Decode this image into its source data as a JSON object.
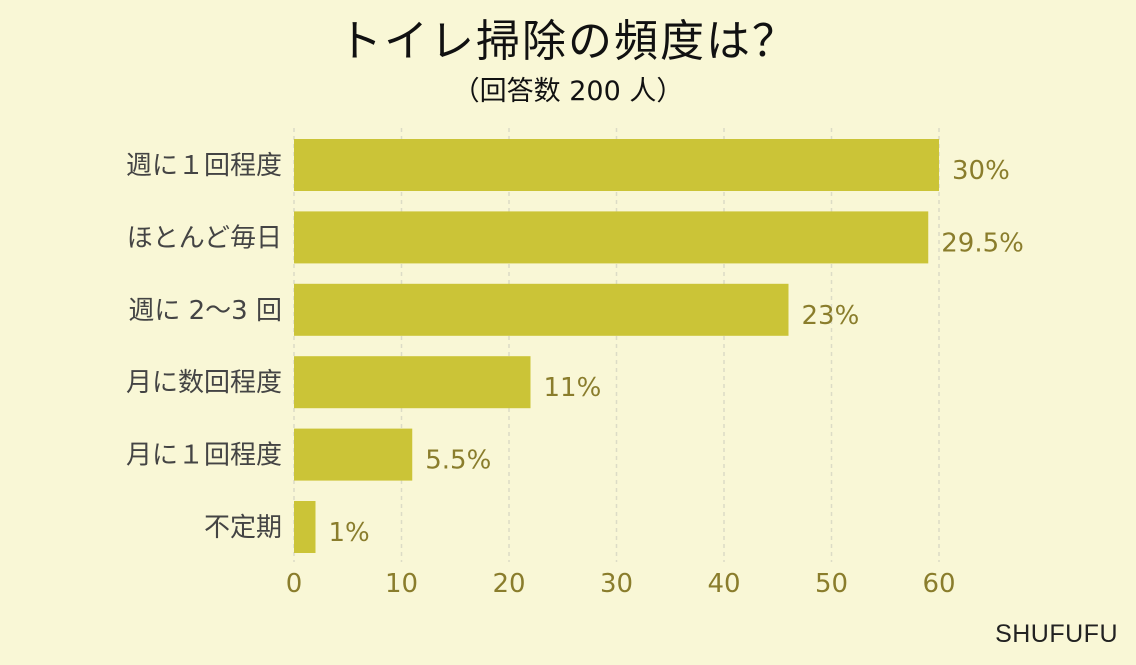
{
  "chart_data": {
    "type": "bar",
    "orientation": "horizontal",
    "title": "トイレ掃除の頻度は？",
    "subtitle": "（回答数 200 人）",
    "categories": [
      "週に１回程度",
      "ほとんど毎日",
      "週に 2〜3 回",
      "月に数回程度",
      "月に１回程度",
      "不定期"
    ],
    "values": [
      60,
      59,
      46,
      22,
      11,
      2
    ],
    "value_labels": [
      "30%",
      "29.5%",
      "23%",
      "11%",
      "5.5%",
      "1%"
    ],
    "xlim": [
      0,
      60
    ],
    "xticks": [
      0,
      10,
      20,
      30,
      40,
      50,
      60
    ],
    "xtick_labels": [
      "0",
      "10",
      "20",
      "30",
      "40",
      "50",
      "60"
    ],
    "grid": "vertical dashed",
    "colors": {
      "bar": "#cbc437",
      "background": "#f9f7d6",
      "grid": "#dcdcc6",
      "value_text": "#8a7d2c",
      "category_text": "#444444"
    }
  },
  "watermark": "SHUFUFU"
}
